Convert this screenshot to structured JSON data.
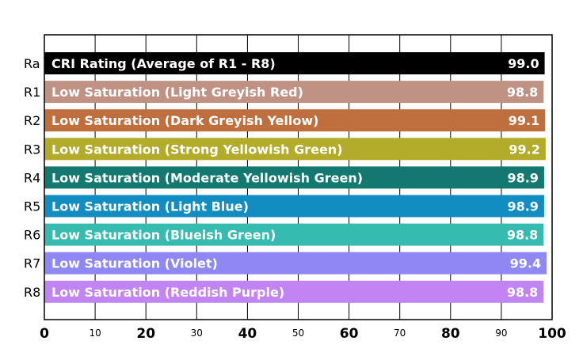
{
  "chart_data": {
    "type": "bar",
    "orientation": "horizontal",
    "title": "",
    "xlabel": "",
    "ylabel": "",
    "xlim": [
      0,
      100
    ],
    "grid": true,
    "categories": [
      "Ra",
      "R1",
      "R2",
      "R3",
      "R4",
      "R5",
      "R6",
      "R7",
      "R8"
    ],
    "bar_labels": [
      "CRI Rating (Average of R1 - R8)",
      "Low Saturation (Light Greyish Red)",
      "Low Saturation (Dark Greyish Yellow)",
      "Low Saturation (Strong Yellowish Green)",
      "Low Saturation (Moderate Yellowish Green)",
      "Low Saturation (Light Blue)",
      "Low Saturation (Blueish Green)",
      "Low Saturation (Violet)",
      "Low Saturation (Reddish Purple)"
    ],
    "values": [
      99.0,
      98.8,
      99.1,
      99.2,
      98.9,
      98.9,
      98.8,
      99.4,
      98.8
    ],
    "value_labels": [
      "99.0",
      "98.8",
      "99.1",
      "99.2",
      "98.9",
      "98.9",
      "98.8",
      "99.4",
      "98.8"
    ],
    "colors": [
      "#000000",
      "#bf9284",
      "#bf6e3e",
      "#b3ab2a",
      "#13786f",
      "#128dc1",
      "#35bbb0",
      "#8e87f4",
      "#c184f2"
    ],
    "x_ticks_major": [
      {
        "value": 0,
        "label": "0"
      },
      {
        "value": 20,
        "label": "20"
      },
      {
        "value": 40,
        "label": "40"
      },
      {
        "value": 60,
        "label": "60"
      },
      {
        "value": 80,
        "label": "80"
      },
      {
        "value": 100,
        "label": "100"
      }
    ],
    "x_ticks_minor": [
      {
        "value": 10,
        "label": "10"
      },
      {
        "value": 30,
        "label": "30"
      },
      {
        "value": 50,
        "label": "50"
      },
      {
        "value": 70,
        "label": "70"
      },
      {
        "value": 90,
        "label": "90"
      }
    ]
  }
}
